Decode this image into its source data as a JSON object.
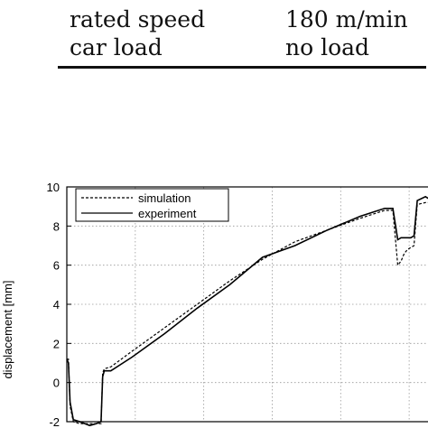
{
  "table": {
    "rows": [
      {
        "label": "",
        "value": ""
      },
      {
        "label": "rated speed",
        "value": "180 m/min"
      },
      {
        "label": "car load",
        "value": "no load"
      }
    ]
  },
  "chart_data": {
    "type": "line",
    "ylabel": "displacement [mm]",
    "xlabel": "",
    "ylim": [
      -2,
      10
    ],
    "yticks": [
      -2,
      0,
      2,
      4,
      6,
      8,
      10
    ],
    "grid": true,
    "legend_position": "top-left",
    "series": [
      {
        "name": "simulation",
        "style": "dashed",
        "color": "#000000",
        "x": [
          0,
          1,
          2,
          4,
          8,
          14,
          18,
          21,
          22,
          23,
          27,
          40,
          60,
          80,
          100,
          120,
          140,
          160,
          180,
          195,
          200,
          203,
          205,
          207,
          209,
          211,
          213,
          215,
          220,
          222,
          226
        ],
        "y": [
          1.2,
          1.2,
          -1.2,
          -2.0,
          -2.1,
          -2.1,
          -2.1,
          -2.1,
          0.5,
          0.7,
          0.8,
          1.6,
          2.8,
          4.0,
          5.2,
          6.3,
          7.2,
          7.8,
          8.4,
          8.8,
          8.8,
          6.0,
          6.2,
          6.6,
          6.8,
          6.9,
          7.0,
          9.1,
          9.2,
          9.2,
          9.2
        ]
      },
      {
        "name": "experiment",
        "style": "solid",
        "color": "#000000",
        "x": [
          0,
          1,
          2,
          4,
          8,
          14,
          18,
          21,
          22,
          23,
          27,
          40,
          60,
          80,
          100,
          120,
          140,
          160,
          180,
          195,
          200,
          203,
          205,
          207,
          209,
          211,
          213,
          215,
          220,
          222,
          226
        ],
        "y": [
          1.2,
          1.0,
          -1.0,
          -1.9,
          -2.0,
          -2.2,
          -2.1,
          -2.0,
          0.3,
          0.6,
          0.6,
          1.3,
          2.5,
          3.8,
          5.0,
          6.4,
          7.0,
          7.8,
          8.5,
          8.9,
          8.9,
          7.3,
          7.4,
          7.4,
          7.4,
          7.4,
          7.5,
          9.3,
          9.5,
          9.4,
          9.4
        ]
      }
    ]
  }
}
